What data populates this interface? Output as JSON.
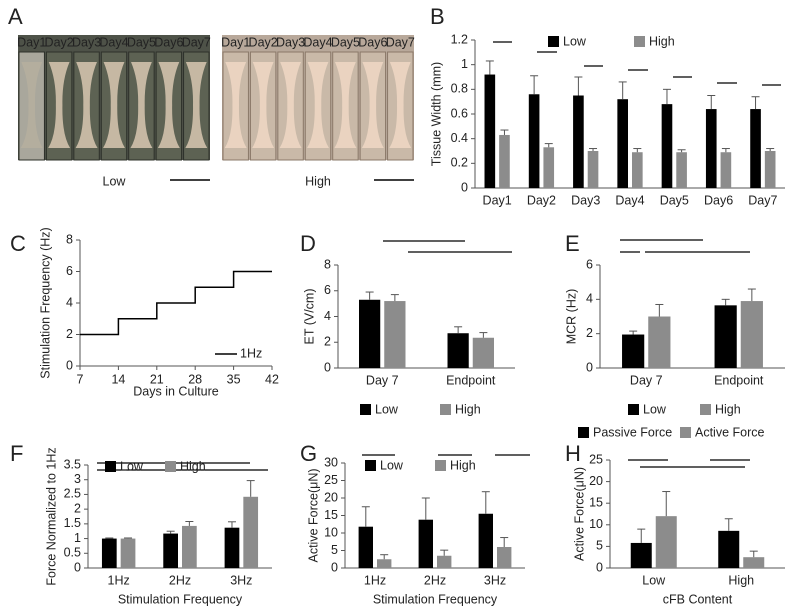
{
  "figure_a": {
    "panel": "A",
    "groups": [
      {
        "label": "Low",
        "days": [
          "Day1",
          "Day2",
          "Day3",
          "Day4",
          "Day5",
          "Day6",
          "Day7"
        ]
      },
      {
        "label": "High",
        "days": [
          "Day1",
          "Day2",
          "Day3",
          "Day4",
          "Day5",
          "Day6",
          "Day7"
        ]
      }
    ]
  },
  "chart_data": [
    {
      "panel": "B",
      "type": "bar",
      "ylabel": "Tissue Width (mm)",
      "categories": [
        "Day1",
        "Day2",
        "Day3",
        "Day4",
        "Day5",
        "Day6",
        "Day7"
      ],
      "series": [
        {
          "name": "Low",
          "color": "#000000",
          "values": [
            0.92,
            0.76,
            0.75,
            0.72,
            0.68,
            0.64,
            0.64
          ],
          "errors": [
            0.11,
            0.15,
            0.15,
            0.14,
            0.12,
            0.11,
            0.1
          ]
        },
        {
          "name": "High",
          "color": "#8c8c8c",
          "values": [
            0.43,
            0.33,
            0.3,
            0.29,
            0.29,
            0.29,
            0.3
          ],
          "errors": [
            0.04,
            0.03,
            0.02,
            0.03,
            0.02,
            0.03,
            0.02
          ]
        }
      ],
      "ylim": [
        0,
        1.2
      ],
      "yticks": [
        0,
        0.2,
        0.4,
        0.6,
        0.8,
        1,
        1.2
      ],
      "legend": "top"
    },
    {
      "panel": "C",
      "type": "line",
      "xlabel": "Days in Culture",
      "ylabel": "Stimulation Frequency (Hz)",
      "x": [
        7,
        14,
        14,
        21,
        21,
        28,
        28,
        35,
        35,
        42
      ],
      "series": [
        {
          "name": "1Hz",
          "color": "#000000",
          "values": [
            2,
            2,
            3,
            3,
            4,
            4,
            5,
            5,
            6,
            6
          ]
        }
      ],
      "xlim": [
        7,
        42
      ],
      "xticks": [
        7,
        14,
        21,
        28,
        35,
        42
      ],
      "ylim": [
        0,
        8
      ],
      "yticks": [
        0,
        2,
        4,
        6,
        8
      ],
      "legend": "lower right"
    },
    {
      "panel": "D",
      "type": "bar",
      "ylabel": "ET (V/cm)",
      "categories": [
        "Day 7",
        "Endpoint"
      ],
      "series": [
        {
          "name": "Low",
          "color": "#000000",
          "values": [
            5.3,
            2.7
          ],
          "errors": [
            0.6,
            0.5
          ]
        },
        {
          "name": "High",
          "color": "#8c8c8c",
          "values": [
            5.2,
            2.35
          ],
          "errors": [
            0.5,
            0.4
          ]
        }
      ],
      "ylim": [
        0,
        8
      ],
      "yticks": [
        0,
        2,
        4,
        6,
        8
      ],
      "legend": "bottom"
    },
    {
      "panel": "E",
      "type": "bar",
      "ylabel": "MCR (Hz)",
      "categories": [
        "Day 7",
        "Endpoint"
      ],
      "series": [
        {
          "name": "Low",
          "color": "#000000",
          "values": [
            1.95,
            3.65
          ],
          "errors": [
            0.2,
            0.35
          ]
        },
        {
          "name": "High",
          "color": "#8c8c8c",
          "values": [
            3.0,
            3.9
          ],
          "errors": [
            0.7,
            0.7
          ]
        }
      ],
      "ylim": [
        0,
        6
      ],
      "yticks": [
        0,
        2,
        4,
        6
      ],
      "legend": "bottom"
    },
    {
      "panel": "F",
      "type": "bar",
      "xlabel": "Stimulation Frequency",
      "ylabel": "Force Normalized to 1Hz",
      "categories": [
        "1Hz",
        "2Hz",
        "3Hz"
      ],
      "series": [
        {
          "name": "Low",
          "color": "#000000",
          "values": [
            1.0,
            1.17,
            1.37
          ],
          "errors": [
            0.02,
            0.08,
            0.2
          ]
        },
        {
          "name": "High",
          "color": "#8c8c8c",
          "values": [
            1.0,
            1.43,
            2.42
          ],
          "errors": [
            0.02,
            0.15,
            0.55
          ]
        }
      ],
      "ylim": [
        0,
        3.5
      ],
      "yticks": [
        0,
        0.5,
        1,
        1.5,
        2,
        2.5,
        3,
        3.5
      ],
      "legend": "top"
    },
    {
      "panel": "G",
      "type": "bar",
      "xlabel": "Stimulation Frequency",
      "ylabel": "Active Force(μN)",
      "categories": [
        "1Hz",
        "2Hz",
        "3Hz"
      ],
      "series": [
        {
          "name": "Low",
          "color": "#000000",
          "values": [
            11.8,
            13.8,
            15.5
          ],
          "errors": [
            5.7,
            6.2,
            6.3
          ]
        },
        {
          "name": "High",
          "color": "#8c8c8c",
          "values": [
            2.5,
            3.5,
            6.0
          ],
          "errors": [
            1.3,
            1.6,
            2.7
          ]
        }
      ],
      "ylim": [
        0,
        30
      ],
      "yticks": [
        0,
        5,
        10,
        15,
        20,
        25,
        30
      ],
      "legend": "top"
    },
    {
      "panel": "H",
      "type": "bar",
      "xlabel": "cFB Content",
      "ylabel": "Active Force(μN)",
      "categories": [
        "Low",
        "High"
      ],
      "series": [
        {
          "name": "Passive Force",
          "color": "#000000",
          "values": [
            5.8,
            8.6
          ],
          "errors": [
            3.2,
            2.8
          ]
        },
        {
          "name": "Active Force",
          "color": "#8c8c8c",
          "values": [
            12.0,
            2.5
          ],
          "errors": [
            5.7,
            1.4
          ]
        }
      ],
      "ylim": [
        0,
        25
      ],
      "yticks": [
        0,
        5,
        10,
        15,
        20,
        25
      ],
      "legend": "top"
    }
  ]
}
